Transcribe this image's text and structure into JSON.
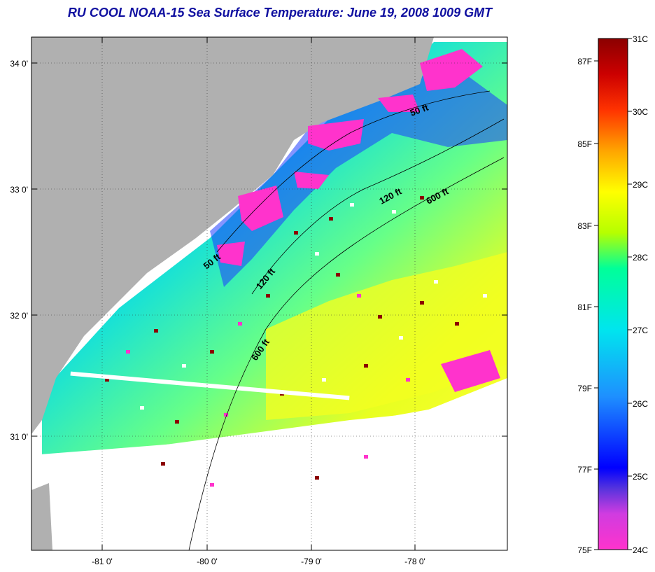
{
  "title": "RU COOL  NOAA-15  Sea Surface Temperature:  June 19, 2008 1009 GMT",
  "latitude_ticks": [
    "34 0'",
    "33 0'",
    "32 0'",
    "31 0'"
  ],
  "longitude_ticks": [
    "-81 0'",
    "-80 0'",
    "-79 0'",
    "-78 0'"
  ],
  "contour_labels": [
    "50 ft",
    "120 ft",
    "600 ft",
    "50 ft",
    "120 ft",
    "600 ft"
  ],
  "colorbar": {
    "fahrenheit_labels": [
      "87F",
      "85F",
      "83F",
      "81F",
      "79F",
      "77F",
      "75F"
    ],
    "celsius_labels": [
      "31C",
      "30C",
      "29C",
      "28C",
      "27C",
      "26C",
      "25C",
      "24C"
    ],
    "range_c": [
      24,
      31
    ],
    "colors": [
      "#ff33cc",
      "#d03ce0",
      "#5533dd",
      "#0000ff",
      "#1e90ff",
      "#00e5ee",
      "#00ff99",
      "#b6ff00",
      "#ffff00",
      "#ffa500",
      "#ff3300",
      "#cc0000",
      "#8b0000"
    ]
  },
  "colors": {
    "land": "#b0b0b0",
    "title": "#1010a0",
    "cloud": "#ffffff"
  }
}
